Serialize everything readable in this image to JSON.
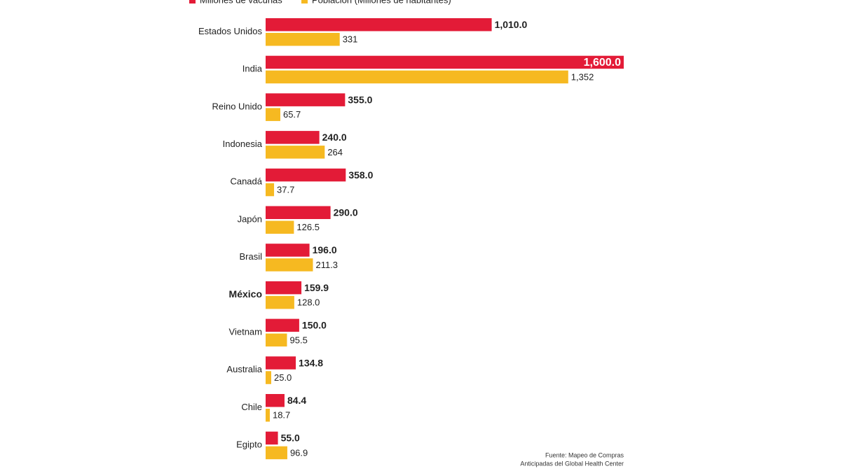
{
  "chart_data": {
    "type": "bar",
    "orientation": "horizontal",
    "categories": [
      "Estados Unidos",
      "India",
      "Reino Unido",
      "Indonesia",
      "Canadá",
      "Japón",
      "Brasil",
      "México",
      "Vietnam",
      "Australia",
      "Chile",
      "Egipto"
    ],
    "series": [
      {
        "name": "Millones de vacunas",
        "color": "#e31b37",
        "values": [
          1010,
          1600,
          355,
          240,
          358,
          290,
          196,
          159.9,
          150,
          134.8,
          84.4,
          55
        ],
        "value_labels": [
          "1,010.0",
          "1,600.0",
          "355.0",
          "240.0",
          "358.0",
          "290.0",
          "196.0",
          "159.9",
          "150.0",
          "134.8",
          "84.4",
          "55.0"
        ]
      },
      {
        "name": "Población (Millones de habitantes)",
        "color": "#f6b921",
        "values": [
          331,
          1352,
          65.7,
          264,
          37.7,
          126.5,
          211.3,
          128,
          95.5,
          25,
          18.7,
          96.9
        ],
        "value_labels": [
          "331",
          "1,352",
          "65.7",
          "264",
          "37.7",
          "126.5",
          "211.3",
          "128.0",
          "95.5",
          "25.0",
          "18.7",
          "96.9"
        ]
      }
    ],
    "xlim": [
      0,
      1600
    ],
    "highlight": 7,
    "source": [
      "Fuente: Mapeo de Compras",
      "Anticipadas del Global Health Center"
    ]
  }
}
